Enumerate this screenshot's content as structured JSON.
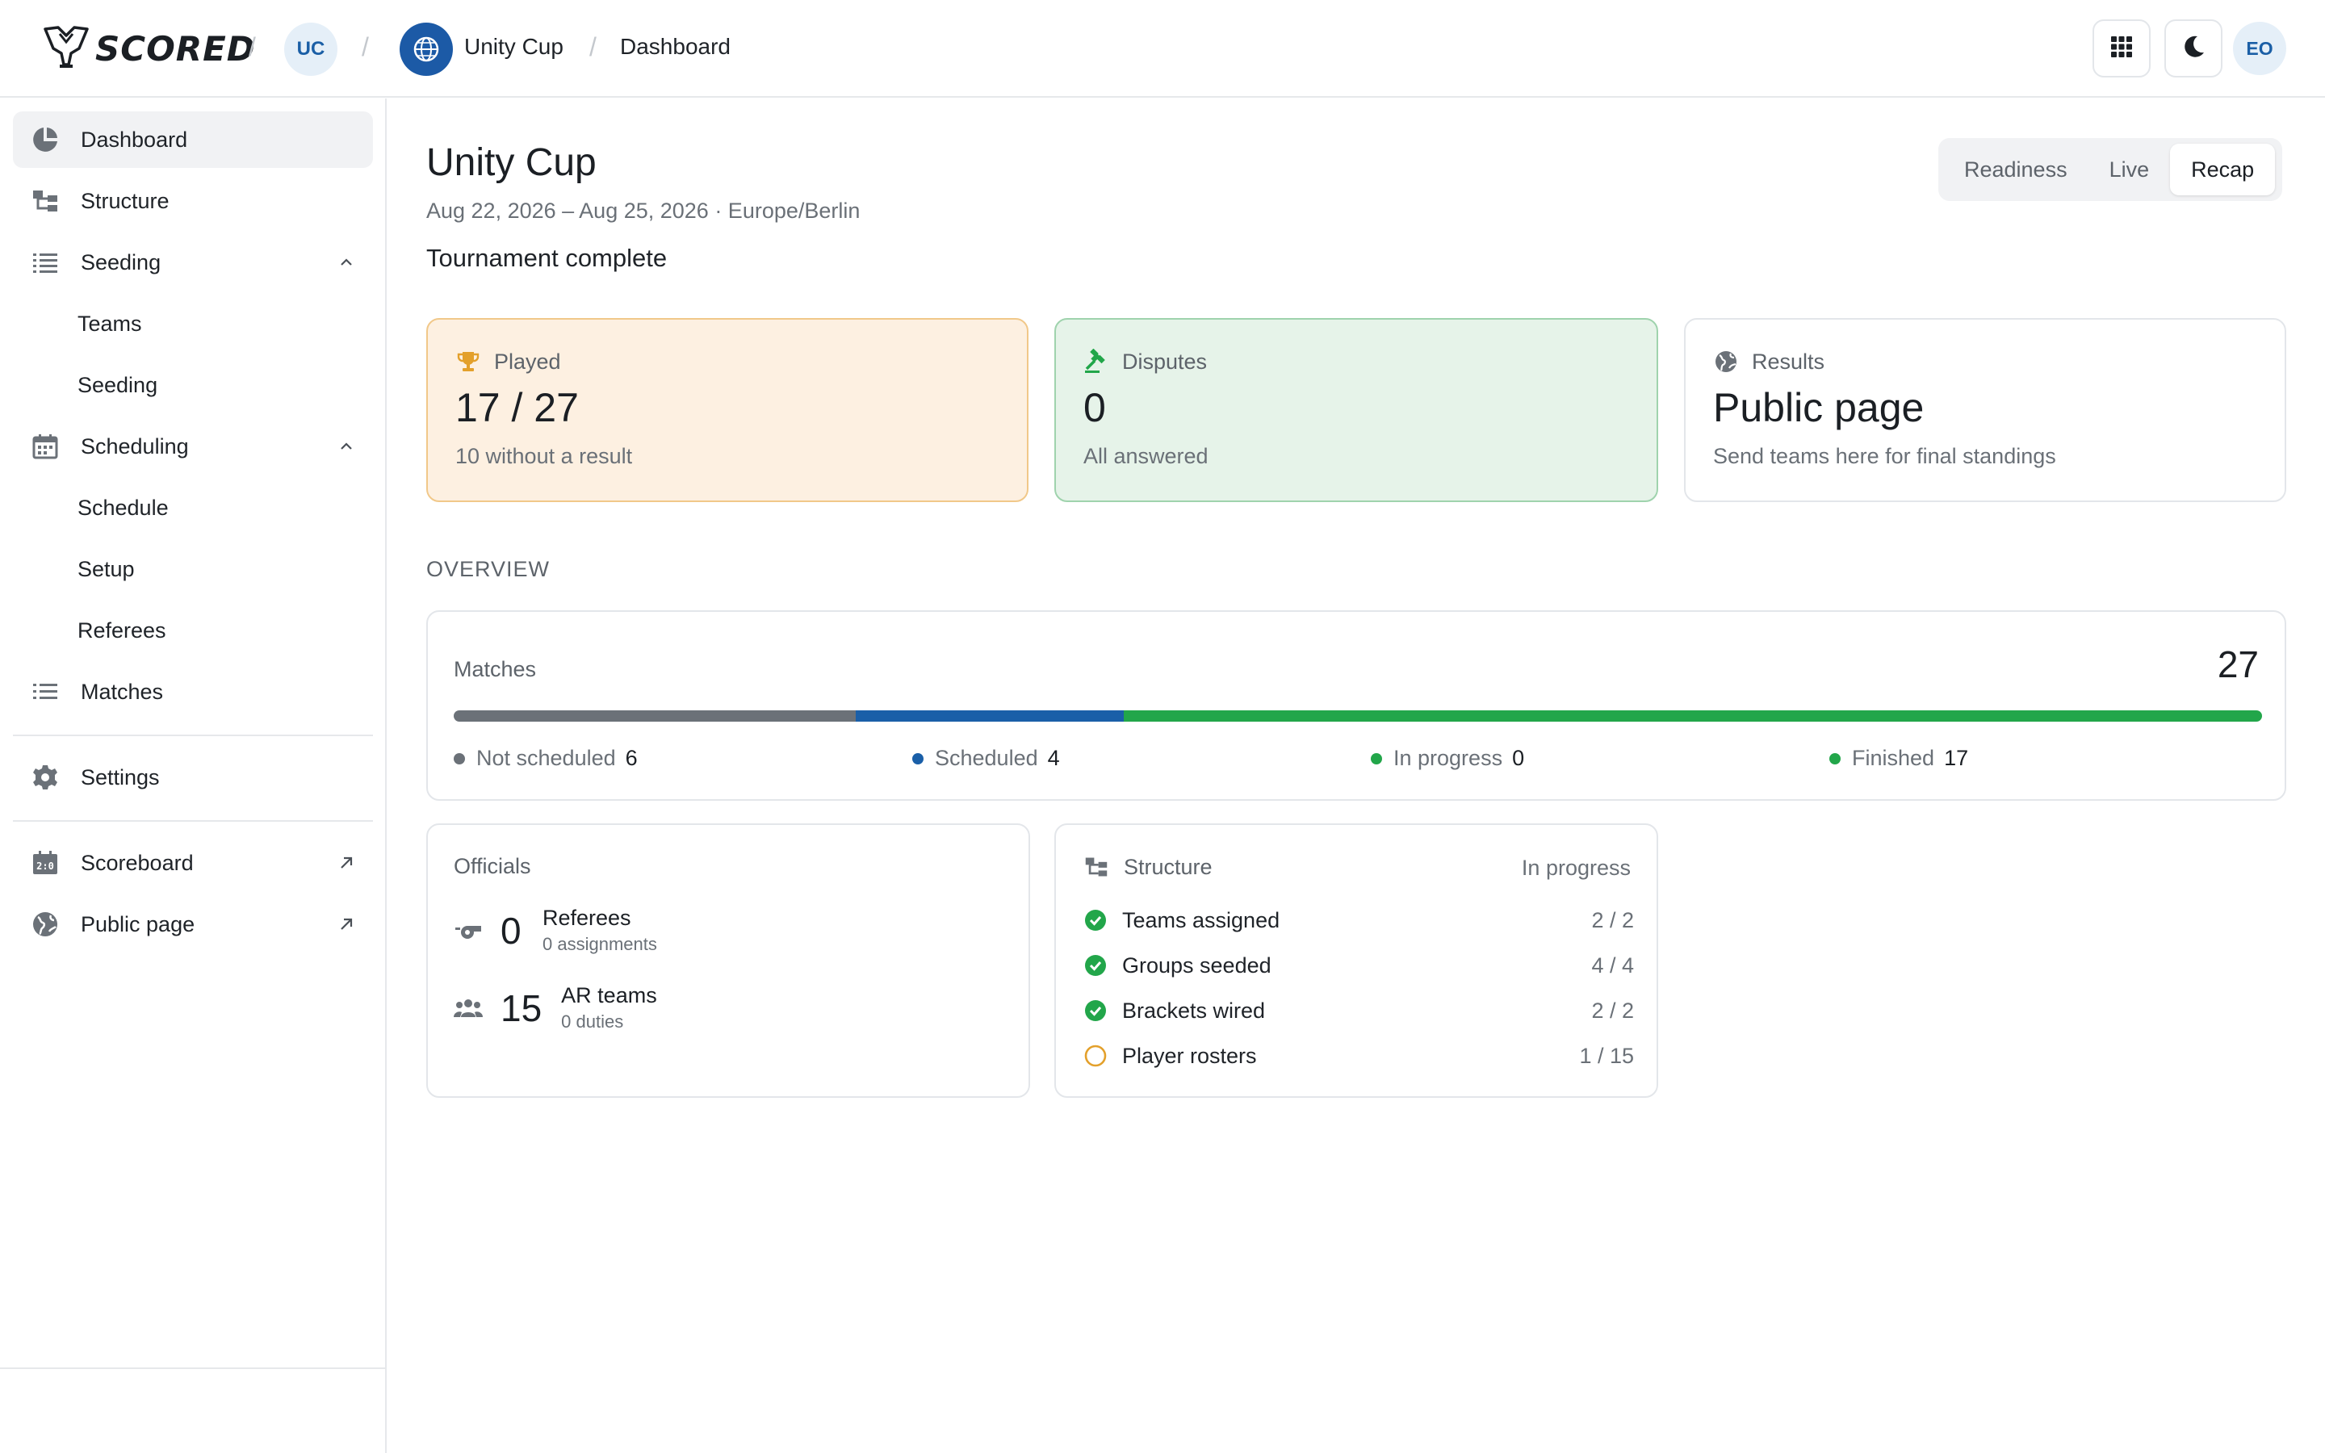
{
  "brand": {
    "name": "SCORED"
  },
  "breadcrumb": {
    "org_initials": "UC",
    "tournament": "Unity Cup",
    "page": "Dashboard",
    "separator": "/"
  },
  "topbar": {
    "user_initials": "EO"
  },
  "sidebar": {
    "items": [
      {
        "label": "Dashboard"
      },
      {
        "label": "Structure"
      },
      {
        "label": "Seeding"
      },
      {
        "label": "Teams"
      },
      {
        "label": "Seeding"
      },
      {
        "label": "Scheduling"
      },
      {
        "label": "Schedule"
      },
      {
        "label": "Setup"
      },
      {
        "label": "Referees"
      },
      {
        "label": "Matches"
      },
      {
        "label": "Settings"
      },
      {
        "label": "Scoreboard"
      },
      {
        "label": "Public page"
      }
    ]
  },
  "header": {
    "title": "Unity Cup",
    "dates": "Aug 22, 2026 – Aug 25, 2026 · Europe/Berlin",
    "status": "Tournament complete"
  },
  "view_switcher": {
    "options": [
      "Readiness",
      "Live",
      "Recap"
    ],
    "selected": "Recap"
  },
  "cards": {
    "played": {
      "label": "Played",
      "value": "17 / 27",
      "sub": "10 without a result"
    },
    "disputes": {
      "label": "Disputes",
      "value": "0",
      "sub": "All answered"
    },
    "results": {
      "label": "Results",
      "value": "Public page",
      "sub": "Send teams here for final standings"
    }
  },
  "overview": {
    "section_label": "OVERVIEW",
    "matches_label": "Matches",
    "total": "27",
    "segments": [
      {
        "label": "Not scheduled",
        "value": 6,
        "color": "#6b7178"
      },
      {
        "label": "Scheduled",
        "value": 4,
        "color": "#1a5fa8"
      },
      {
        "label": "In progress",
        "value": 0,
        "color": "#22a64a"
      },
      {
        "label": "Finished",
        "value": 17,
        "color": "#22a64a"
      }
    ]
  },
  "officials": {
    "label": "Officials",
    "referees": {
      "count": "0",
      "title": "Referees",
      "sub": "0 assignments"
    },
    "ar_teams": {
      "count": "15",
      "title": "AR teams",
      "sub": "0 duties"
    }
  },
  "structure": {
    "label": "Structure",
    "status": "In progress",
    "rows": [
      {
        "label": "Teams assigned",
        "count": "2 / 2",
        "done": true
      },
      {
        "label": "Groups seeded",
        "count": "4 / 4",
        "done": true
      },
      {
        "label": "Brackets wired",
        "count": "2 / 2",
        "done": true
      },
      {
        "label": "Player rosters",
        "count": "1 / 15",
        "done": false
      }
    ]
  },
  "colors": {
    "accent_blue": "#1c5aa6",
    "success_green": "#22a64a",
    "warning_orange": "#e3a02b"
  }
}
